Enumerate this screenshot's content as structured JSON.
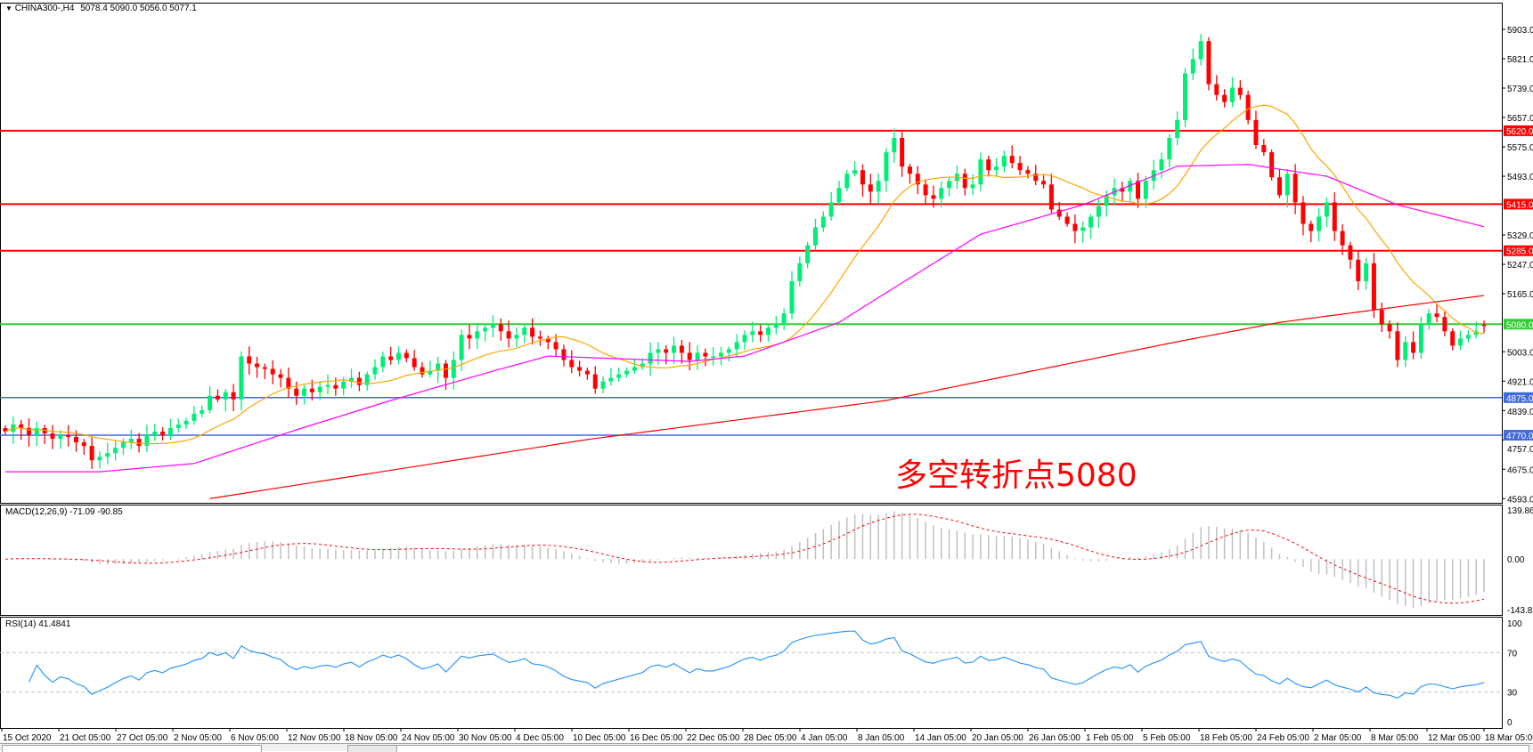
{
  "header": {
    "arrow_icon": "triangle-down-icon",
    "symbol": "CHINA300-,H4",
    "ohlc": "5078.4 5090.0 5056.0 5077.1"
  },
  "annotation": "多空转折点5080",
  "macd_label": "MACD(12,26,9) -71.09 -90.85",
  "rsi_label": "RSI(14) 41.4841",
  "colors": {
    "bull": "#00ee76",
    "bear": "#ff0000",
    "ma_fast": "#ffa500",
    "ma_mid": "#ff00ff",
    "ma_slow": "#ff0000",
    "resistance": "#ff0000",
    "pivot": "#32cd32",
    "support": "#4169e1",
    "macd_hist": "#c0c0c0",
    "macd_signal": "#ff0000",
    "rsi": "#1e90ff"
  },
  "chart_data": {
    "type": "candlestick",
    "price_axis": {
      "ylim": [
        4593.0,
        5903.0
      ],
      "ticks": [
        "5903.0",
        "5821.0",
        "5739.0",
        "5657.0",
        "5575.0",
        "5493.0",
        "5329.0",
        "5247.0",
        "5165.0",
        "5003.0",
        "4921.0",
        "4839.0",
        "4757.0",
        "4675.0",
        "4593.0"
      ]
    },
    "x_ticks": [
      "15 Oct 2020",
      "21 Oct 05:00",
      "27 Oct 05:00",
      "2 Nov 05:00",
      "6 Nov 05:00",
      "12 Nov 05:00",
      "18 Nov 05:00",
      "24 Nov 05:00",
      "30 Nov 05:00",
      "4 Dec 05:00",
      "10 Dec 05:00",
      "16 Dec 05:00",
      "22 Dec 05:00",
      "28 Dec 05:00",
      "4 Jan 05:00",
      "8 Jan 05:00",
      "14 Jan 05:00",
      "20 Jan 05:00",
      "26 Jan 05:00",
      "1 Feb 05:00",
      "5 Feb 05:00",
      "18 Feb 05:00",
      "24 Feb 05:00",
      "2 Mar 05:00",
      "8 Mar 05:00",
      "12 Mar 05:00",
      "18 Mar 05:00"
    ],
    "closes": [
      4780,
      4800,
      4790,
      4770,
      4790,
      4775,
      4760,
      4770,
      4765,
      4750,
      4740,
      4700,
      4710,
      4720,
      4735,
      4750,
      4760,
      4740,
      4770,
      4780,
      4770,
      4790,
      4800,
      4810,
      4830,
      4840,
      4880,
      4870,
      4890,
      4870,
      4990,
      4970,
      4960,
      4955,
      4940,
      4930,
      4900,
      4880,
      4900,
      4890,
      4905,
      4910,
      4900,
      4920,
      4930,
      4910,
      4940,
      4960,
      4990,
      4980,
      5000,
      4985,
      4960,
      4940,
      4950,
      4970,
      4930,
      4980,
      5050,
      5040,
      5060,
      5070,
      5080,
      5060,
      5040,
      5050,
      5070,
      5045,
      5040,
      5030,
      5010,
      4980,
      4960,
      4950,
      4940,
      4900,
      4920,
      4930,
      4940,
      4950,
      4960,
      4970,
      5000,
      5010,
      5000,
      5020,
      5000,
      4980,
      5000,
      4990,
      4990,
      5000,
      5010,
      5030,
      5050,
      5060,
      5050,
      5070,
      5080,
      5110,
      5200,
      5250,
      5300,
      5350,
      5380,
      5420,
      5460,
      5500,
      5510,
      5470,
      5450,
      5480,
      5560,
      5600,
      5520,
      5500,
      5470,
      5440,
      5430,
      5460,
      5480,
      5500,
      5460,
      5470,
      5540,
      5510,
      5520,
      5550,
      5530,
      5510,
      5500,
      5480,
      5470,
      5400,
      5380,
      5360,
      5340,
      5350,
      5380,
      5410,
      5440,
      5460,
      5450,
      5480,
      5430,
      5480,
      5510,
      5540,
      5600,
      5650,
      5780,
      5820,
      5870,
      5750,
      5720,
      5700,
      5740,
      5720,
      5650,
      5580,
      5560,
      5490,
      5440,
      5500,
      5420,
      5360,
      5340,
      5380,
      5420,
      5340,
      5300,
      5260,
      5200,
      5250,
      5120,
      5080,
      5060,
      4980,
      5030,
      5000,
      5080,
      5110,
      5100,
      5060,
      5020,
      5040,
      5050,
      5060,
      5077
    ],
    "last_bar": {
      "open": 5078.4,
      "high": 5090.0,
      "low": 5056.0,
      "close": 5077.1
    },
    "ma_mid_points": [
      [
        0,
        4668
      ],
      [
        12,
        4668
      ],
      [
        24,
        4691
      ],
      [
        37,
        4785
      ],
      [
        49,
        4867
      ],
      [
        62,
        4949
      ],
      [
        69,
        4991
      ],
      [
        87,
        4976
      ],
      [
        94,
        4991
      ],
      [
        106,
        5085
      ],
      [
        112,
        5168
      ],
      [
        124,
        5331
      ],
      [
        137,
        5413
      ],
      [
        149,
        5521
      ],
      [
        158,
        5526
      ],
      [
        168,
        5493
      ],
      [
        177,
        5413
      ],
      [
        188,
        5352
      ]
    ],
    "ma_slow_points": [
      [
        26,
        4593
      ],
      [
        74,
        4758
      ],
      [
        112,
        4867
      ],
      [
        149,
        5031
      ],
      [
        162,
        5085
      ],
      [
        188,
        5160
      ]
    ],
    "ma_fast_period": 14,
    "levels": [
      {
        "price": 5620.0,
        "label": "5620.0",
        "kind": "resistance"
      },
      {
        "price": 5415.0,
        "label": "5415.0",
        "kind": "resistance"
      },
      {
        "price": 5285.0,
        "label": "5285.0",
        "kind": "resistance"
      },
      {
        "price": 5080.0,
        "label": "5080.0",
        "kind": "pivot"
      },
      {
        "price": 4875.0,
        "label": "4875.0",
        "kind": "support"
      },
      {
        "price": 4770.0,
        "label": "4770.0",
        "kind": "support"
      }
    ],
    "macd": {
      "params": [
        12,
        26,
        9
      ],
      "ylim": [
        -143.82,
        139.86
      ],
      "ticks": [
        "139.86",
        "0.00",
        "-143.82"
      ]
    },
    "rsi": {
      "period": 14,
      "ylim": [
        0,
        100
      ],
      "ticks": [
        "100",
        "70",
        "30",
        "0"
      ],
      "levels": [
        70,
        30
      ]
    }
  }
}
